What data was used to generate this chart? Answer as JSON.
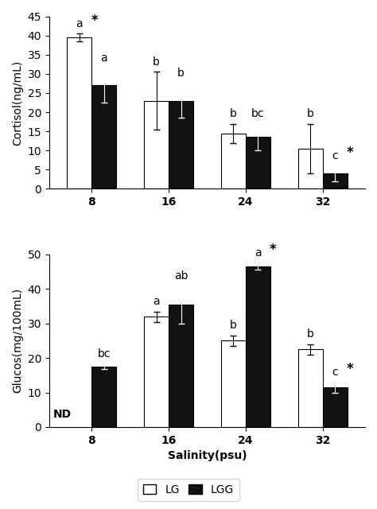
{
  "cortisol": {
    "salinities": [
      "8",
      "16",
      "24",
      "32"
    ],
    "LG_values": [
      39.5,
      23.0,
      14.5,
      10.5
    ],
    "LGG_values": [
      27.0,
      23.0,
      13.5,
      4.0
    ],
    "LG_errors": [
      1.0,
      7.5,
      2.5,
      6.5
    ],
    "LGG_errors": [
      4.5,
      4.5,
      3.5,
      2.0
    ],
    "ylabel": "Cortisol(ng/mL)",
    "ylim": [
      0,
      45
    ],
    "yticks": [
      0,
      5,
      10,
      15,
      20,
      25,
      30,
      35,
      40,
      45
    ],
    "LG_labels": [
      "a",
      "b",
      "b",
      "b"
    ],
    "LGG_labels": [
      "a",
      "b",
      "bc",
      "c"
    ],
    "LG_star": [
      true,
      false,
      false,
      false
    ],
    "LGG_star": [
      false,
      false,
      false,
      true
    ]
  },
  "glucose": {
    "salinities": [
      "8",
      "16",
      "24",
      "32"
    ],
    "LG_values": [
      0,
      32.0,
      25.0,
      22.5
    ],
    "LGG_values": [
      17.5,
      35.5,
      46.5,
      11.5
    ],
    "LG_errors": [
      0,
      1.5,
      1.5,
      1.5
    ],
    "LGG_errors": [
      0.8,
      5.5,
      1.0,
      1.5
    ],
    "ylabel": "Glucos(mg/100mL)",
    "ylim": [
      0,
      50
    ],
    "yticks": [
      0,
      10,
      20,
      30,
      40,
      50
    ],
    "LG_labels": [
      "",
      "a",
      "b",
      "b"
    ],
    "LGG_labels": [
      "bc",
      "ab",
      "a",
      "c"
    ],
    "LG_star": [
      false,
      false,
      false,
      false
    ],
    "LGG_star": [
      false,
      false,
      true,
      true
    ],
    "ND_label": true
  },
  "salinity_label": "Salinity(psu)",
  "bar_width": 0.32,
  "LG_color": "#ffffff",
  "LGG_color": "#111111",
  "edge_color": "#000000",
  "legend_labels": [
    "LG",
    "LGG"
  ],
  "font_size": 10,
  "label_font_size": 10,
  "tick_font_size": 10
}
